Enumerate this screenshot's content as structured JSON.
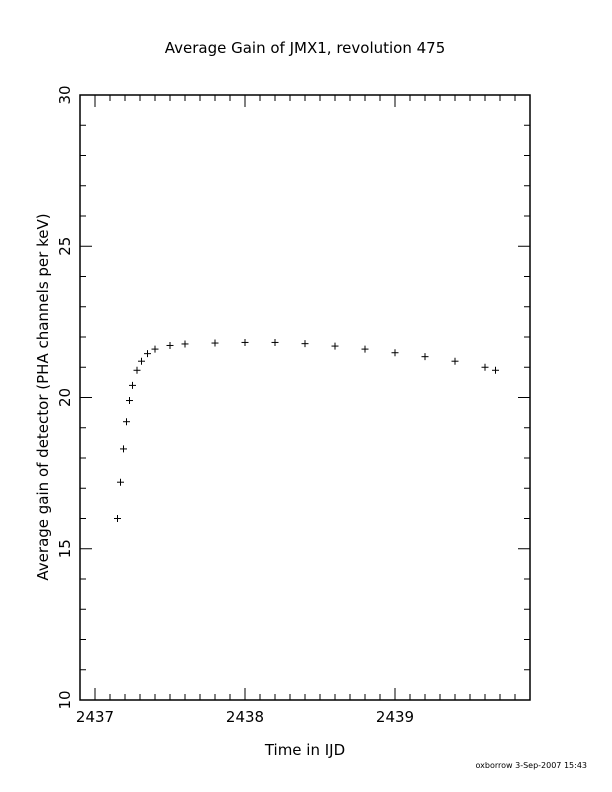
{
  "footer": "oxborrow  3-Sep-2007 15:43",
  "chart_data": {
    "type": "scatter",
    "title": "Average Gain of JMX1, revolution 475",
    "xlabel": "Time in IJD",
    "ylabel": "Average gain of detector (PHA channels per keV)",
    "xlim": [
      2436.9,
      2439.9
    ],
    "ylim": [
      10,
      30
    ],
    "x_ticks": [
      2437,
      2438,
      2439
    ],
    "x_tick_labels": [
      "2437",
      "2438",
      "2439"
    ],
    "y_ticks": [
      10,
      15,
      20,
      25,
      30
    ],
    "y_tick_labels": [
      "10",
      "15",
      "20",
      "25",
      "30"
    ],
    "marker": "+",
    "grid": false,
    "series": [
      {
        "x": [
          2437.15,
          2437.17,
          2437.19,
          2437.21,
          2437.23,
          2437.25,
          2437.28,
          2437.31,
          2437.35,
          2437.4,
          2437.5,
          2437.6,
          2437.8,
          2438.0,
          2438.2,
          2438.4,
          2438.6,
          2438.8,
          2439.0,
          2439.2,
          2439.4,
          2439.6,
          2439.67
        ],
        "y": [
          16.0,
          17.2,
          18.3,
          19.2,
          19.9,
          20.4,
          20.9,
          21.2,
          21.45,
          21.6,
          21.72,
          21.77,
          21.8,
          21.82,
          21.82,
          21.78,
          21.7,
          21.6,
          21.48,
          21.35,
          21.2,
          21.0,
          20.9
        ]
      }
    ]
  }
}
